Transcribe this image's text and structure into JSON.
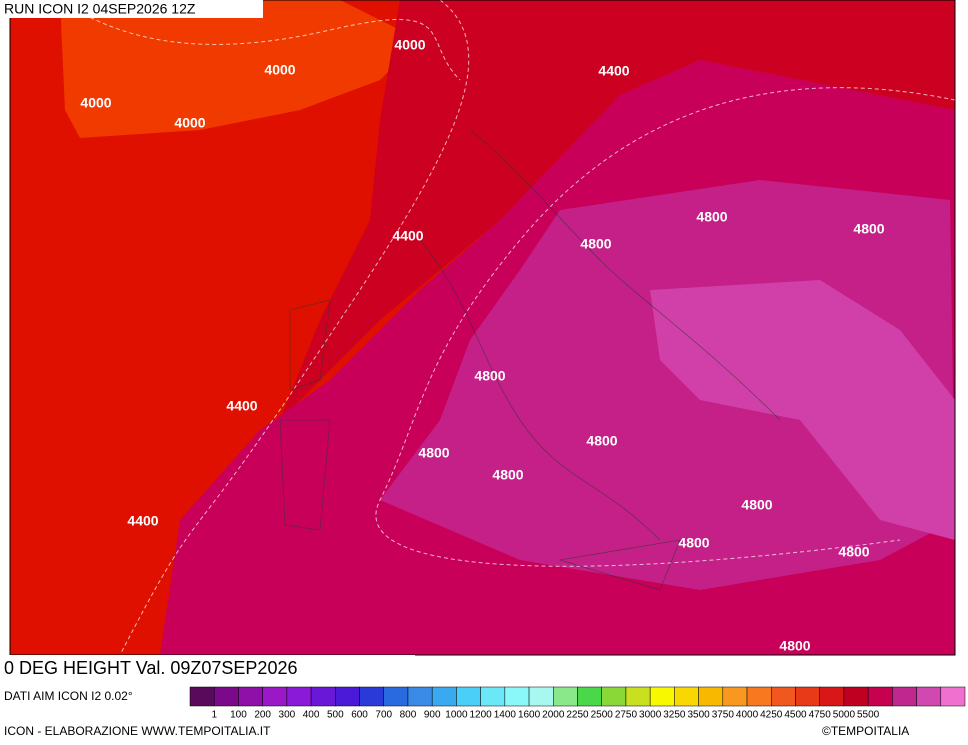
{
  "header": {
    "run": "RUN ICON I2 04SEP2026 12Z"
  },
  "map": {
    "contour_labels": [
      "4000",
      "4000",
      "4000",
      "4000",
      "4400",
      "4400",
      "4400",
      "4400",
      "4800",
      "4800",
      "4800",
      "4800",
      "4800",
      "4800",
      "4800",
      "4800",
      "4800",
      "4800",
      "4800"
    ]
  },
  "footer": {
    "title": "0 DEG HEIGHT Val. 09Z07SEP2026",
    "source": "DATI AIM ICON I2 0.02°",
    "credit": "ICON - ELABORAZIONE WWW.TEMPOITALIA.IT",
    "copyright": "©TEMPOITALIA"
  },
  "legend": {
    "labels": [
      "1",
      "100",
      "200",
      "300",
      "400",
      "500",
      "600",
      "700",
      "800",
      "900",
      "1000",
      "1200",
      "1400",
      "1600",
      "2000",
      "2250",
      "2500",
      "2750",
      "3000",
      "3250",
      "3500",
      "3750",
      "4000",
      "4250",
      "4500",
      "4750",
      "5000",
      "5500"
    ],
    "colors": [
      "#5a0a5a",
      "#7a0a8a",
      "#8e10a8",
      "#9a18c8",
      "#8a1ad8",
      "#6a18d8",
      "#4a1ad8",
      "#2a3ad8",
      "#2a6ae0",
      "#3a8ae8",
      "#3aaaf0",
      "#4ad0f8",
      "#6ae8f8",
      "#8af8f8",
      "#a8f8f0",
      "#8ae88a",
      "#4ad84a",
      "#8ad838",
      "#c8e020",
      "#f8f800",
      "#f8d800",
      "#f8b800",
      "#f89820",
      "#f87820",
      "#f05820",
      "#e83a18",
      "#d81818",
      "#c00020",
      "#c80050",
      "#c02890",
      "#d048b0",
      "#f070d0"
    ]
  }
}
